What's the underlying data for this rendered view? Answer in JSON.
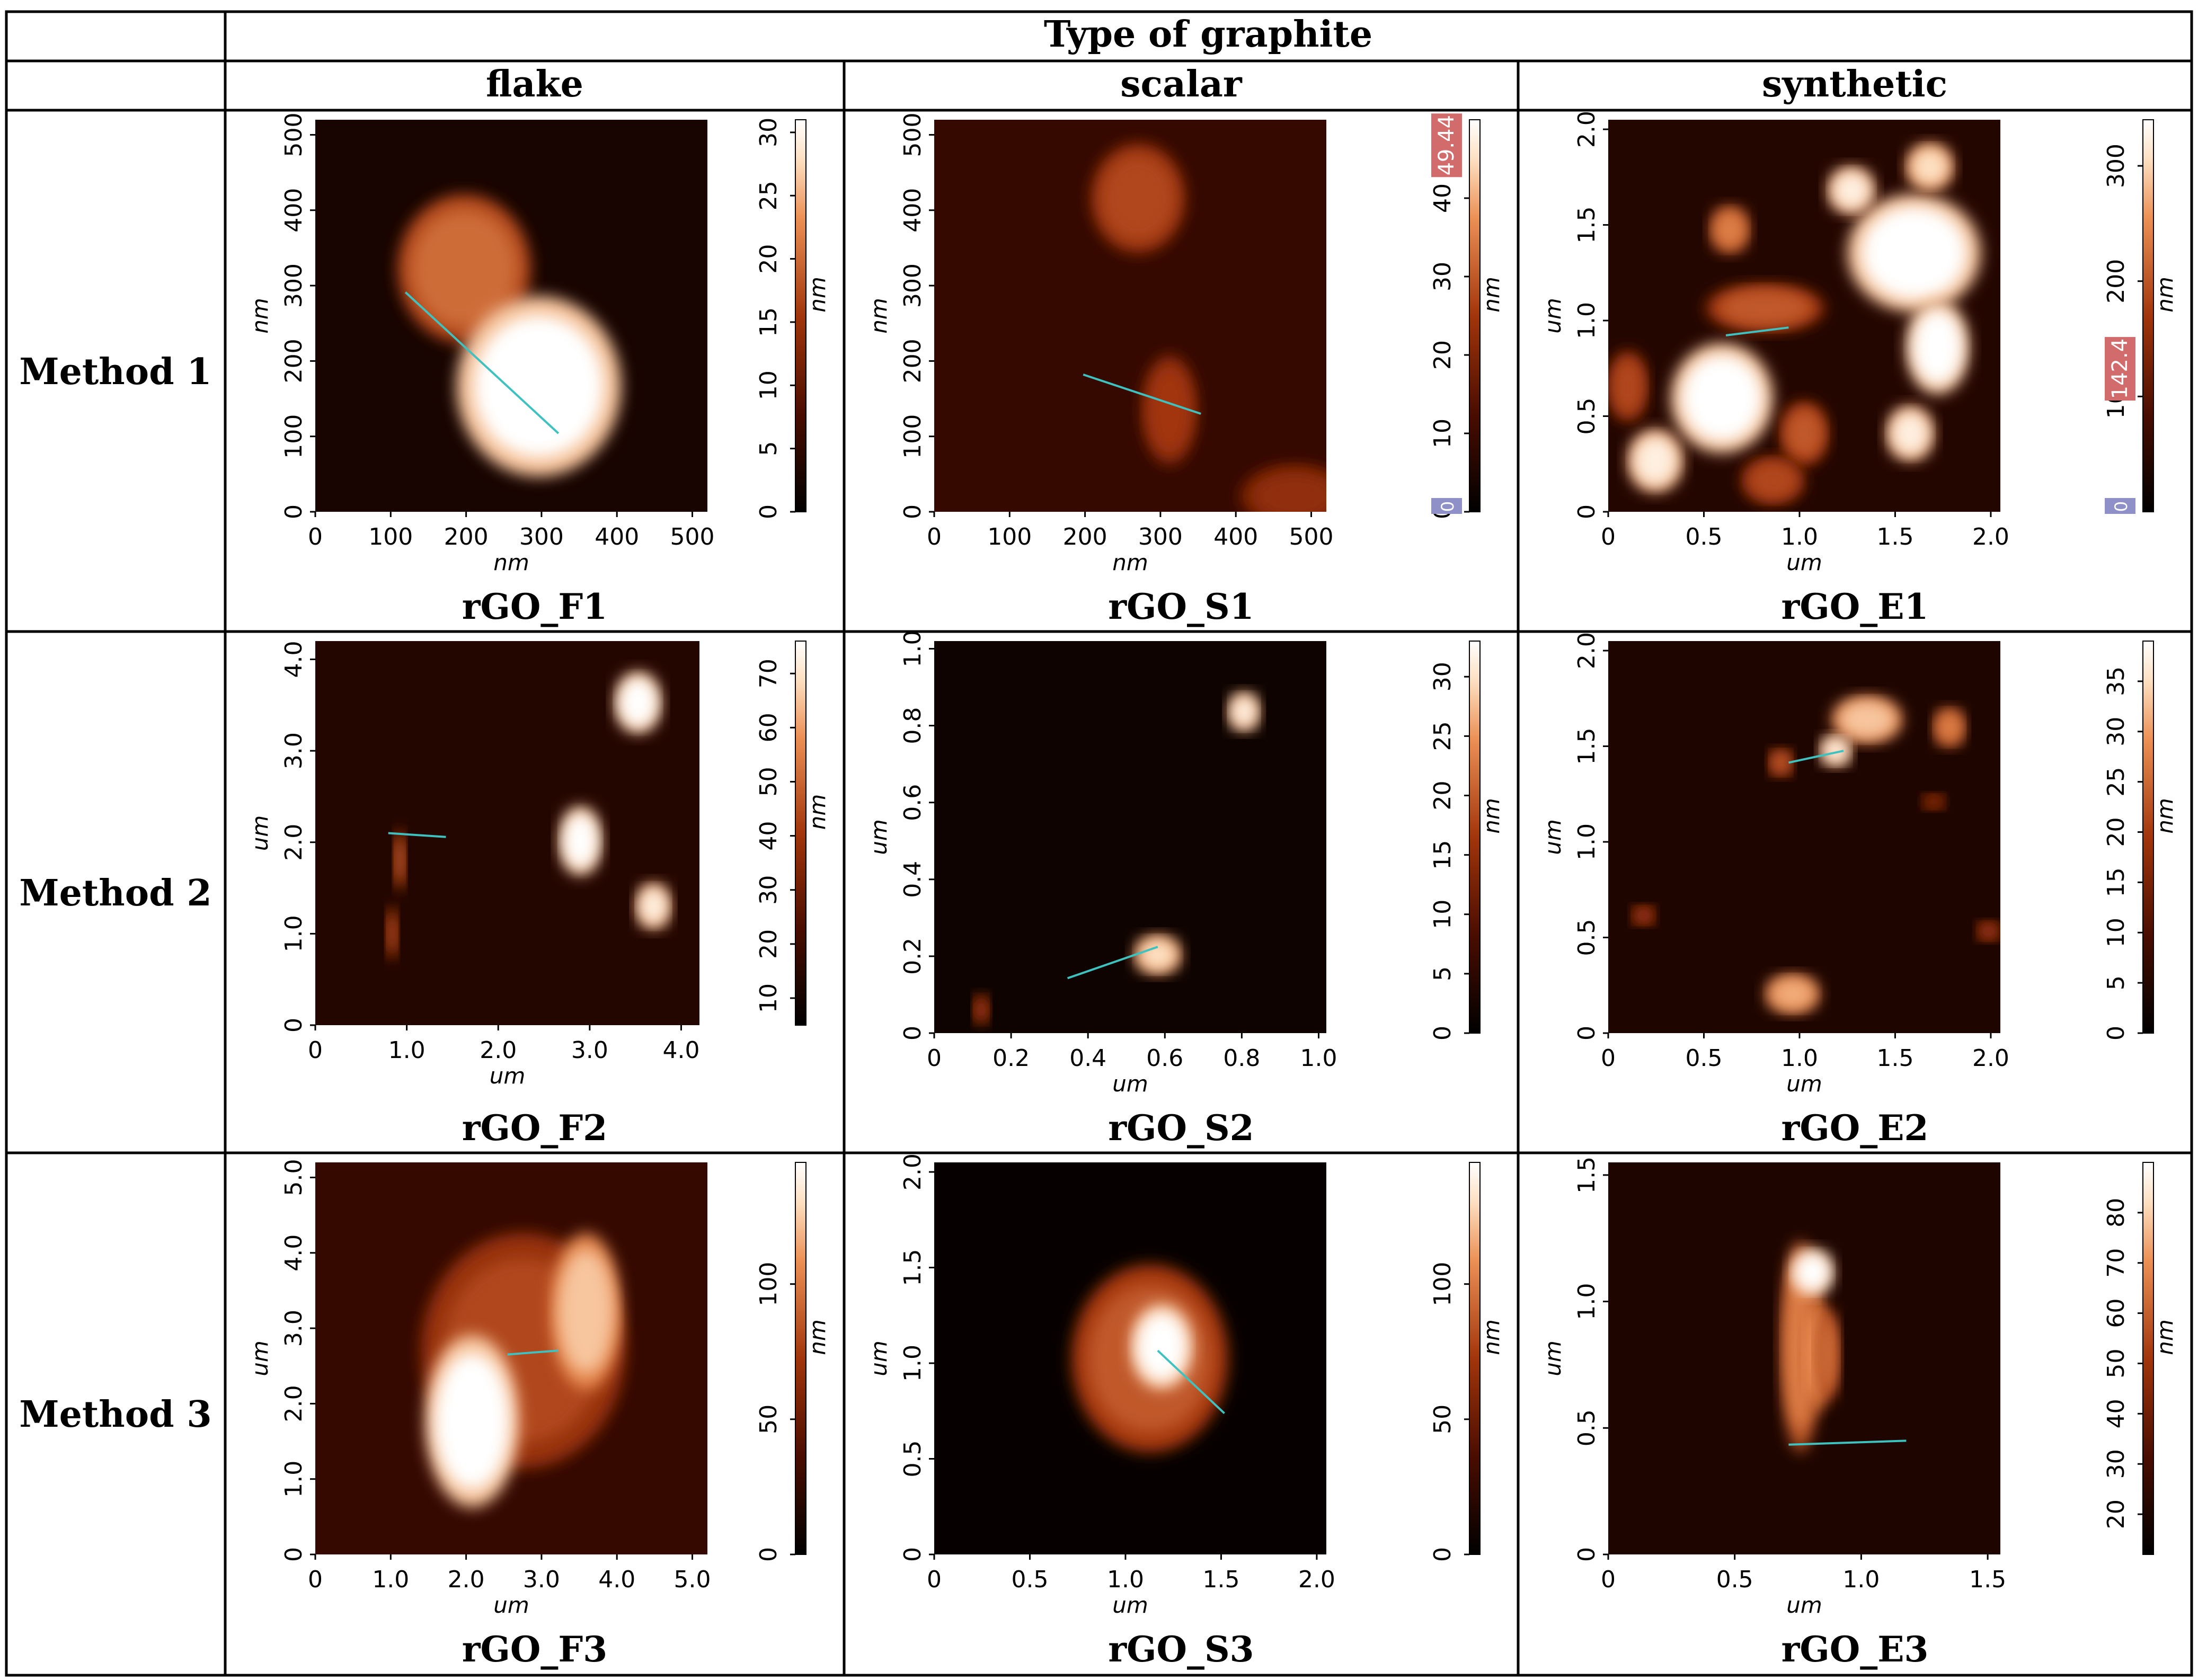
{
  "table": {
    "header": "Type of graphite",
    "columns": [
      "flake",
      "scalar",
      "synthetic"
    ],
    "rows": [
      "Method 1",
      "Method 2",
      "Method 3"
    ]
  },
  "afm_images": [
    {
      "id": "F1",
      "caption": "rGO_F1",
      "axis_unit": "nm",
      "xticks": [
        "0",
        "100",
        "200",
        "300",
        "400",
        "500"
      ],
      "yticks": [
        "0",
        "100",
        "200",
        "300",
        "400",
        "500"
      ],
      "axis_max": 520,
      "cb_unit": "nm",
      "cb_ticks": [
        "0",
        "5",
        "10",
        "15",
        "20",
        "25",
        "30"
      ],
      "cb_min": 0,
      "cb_max": 31,
      "cb_marker": null,
      "cb_zero_marker": null,
      "features": [
        {
          "x": 0.38,
          "y": 0.62,
          "rx": 0.17,
          "ry": 0.19,
          "level": 0.65
        },
        {
          "x": 0.57,
          "y": 0.32,
          "rx": 0.21,
          "ry": 0.23,
          "level": 1.0
        }
      ],
      "bg_level": 0.08,
      "profile": [
        [
          0.23,
          0.56
        ],
        [
          0.62,
          0.2
        ]
      ]
    },
    {
      "id": "S1",
      "caption": "rGO_S1",
      "axis_unit": "nm",
      "xticks": [
        "0",
        "100",
        "200",
        "300",
        "400",
        "500"
      ],
      "yticks": [
        "0",
        "100",
        "200",
        "300",
        "400",
        "500"
      ],
      "axis_max": 520,
      "cb_unit": "nm",
      "cb_ticks": [
        "0",
        "10",
        "20",
        "30",
        "40"
      ],
      "cb_min": 0,
      "cb_max": 50,
      "cb_marker": "49.44",
      "cb_zero_marker": "0",
      "features": [
        {
          "x": 0.52,
          "y": 0.8,
          "rx": 0.12,
          "ry": 0.14,
          "level": 0.55
        },
        {
          "x": 0.6,
          "y": 0.26,
          "rx": 0.07,
          "ry": 0.14,
          "level": 0.5
        },
        {
          "x": 0.92,
          "y": 0.04,
          "rx": 0.14,
          "ry": 0.08,
          "level": 0.45
        }
      ],
      "bg_level": 0.18,
      "profile": [
        [
          0.38,
          0.35
        ],
        [
          0.68,
          0.25
        ]
      ]
    },
    {
      "id": "E1",
      "caption": "rGO_E1",
      "axis_unit": "um",
      "xticks": [
        "0",
        "0.5",
        "1.0",
        "1.5",
        "2.0"
      ],
      "yticks": [
        "0",
        "0.5",
        "1.0",
        "1.5",
        "2.0"
      ],
      "axis_max": 2.05,
      "cb_unit": "nm",
      "cb_ticks": [
        "100",
        "200",
        "300"
      ],
      "cb_min": 0,
      "cb_max": 340,
      "cb_marker": "142.4",
      "cb_zero_marker": "0",
      "features": [
        {
          "x": 0.29,
          "y": 0.29,
          "rx": 0.13,
          "ry": 0.14,
          "level": 1.0
        },
        {
          "x": 0.12,
          "y": 0.13,
          "rx": 0.07,
          "ry": 0.08,
          "level": 0.95
        },
        {
          "x": 0.78,
          "y": 0.66,
          "rx": 0.17,
          "ry": 0.15,
          "level": 1.0
        },
        {
          "x": 0.84,
          "y": 0.42,
          "rx": 0.08,
          "ry": 0.12,
          "level": 1.0
        },
        {
          "x": 0.77,
          "y": 0.2,
          "rx": 0.06,
          "ry": 0.07,
          "level": 0.95
        },
        {
          "x": 0.62,
          "y": 0.82,
          "rx": 0.06,
          "ry": 0.06,
          "level": 0.95
        },
        {
          "x": 0.82,
          "y": 0.88,
          "rx": 0.06,
          "ry": 0.06,
          "level": 0.9
        },
        {
          "x": 0.31,
          "y": 0.72,
          "rx": 0.05,
          "ry": 0.06,
          "level": 0.7
        },
        {
          "x": 0.4,
          "y": 0.52,
          "rx": 0.15,
          "ry": 0.06,
          "level": 0.6
        },
        {
          "x": 0.5,
          "y": 0.2,
          "rx": 0.06,
          "ry": 0.08,
          "level": 0.6
        },
        {
          "x": 0.05,
          "y": 0.32,
          "rx": 0.05,
          "ry": 0.09,
          "level": 0.55
        },
        {
          "x": 0.42,
          "y": 0.08,
          "rx": 0.08,
          "ry": 0.06,
          "level": 0.55
        }
      ],
      "bg_level": 0.12,
      "profile": [
        [
          0.3,
          0.45
        ],
        [
          0.46,
          0.47
        ]
      ]
    },
    {
      "id": "F2",
      "caption": "rGO_F2",
      "axis_unit": "um",
      "xticks": [
        "0",
        "1.0",
        "2.0",
        "3.0",
        "4.0"
      ],
      "yticks": [
        "0",
        "1.0",
        "2.0",
        "3.0",
        "4.0"
      ],
      "axis_max": 4.2,
      "cb_unit": "nm",
      "cb_ticks": [
        "10",
        "20",
        "30",
        "40",
        "50",
        "60",
        "70"
      ],
      "cb_min": 5,
      "cb_max": 76,
      "cb_marker": null,
      "cb_zero_marker": null,
      "features": [
        {
          "x": 0.84,
          "y": 0.84,
          "rx": 0.06,
          "ry": 0.08,
          "level": 1.0
        },
        {
          "x": 0.69,
          "y": 0.48,
          "rx": 0.055,
          "ry": 0.09,
          "level": 1.0
        },
        {
          "x": 0.88,
          "y": 0.31,
          "rx": 0.045,
          "ry": 0.06,
          "level": 0.95
        },
        {
          "x": 0.22,
          "y": 0.43,
          "rx": 0.015,
          "ry": 0.08,
          "level": 0.6
        },
        {
          "x": 0.2,
          "y": 0.24,
          "rx": 0.015,
          "ry": 0.07,
          "level": 0.55
        }
      ],
      "bg_level": 0.12,
      "profile": [
        [
          0.19,
          0.5
        ],
        [
          0.34,
          0.49
        ]
      ]
    },
    {
      "id": "S2",
      "caption": "rGO_S2",
      "axis_unit": "um",
      "xticks": [
        "0",
        "0.2",
        "0.4",
        "0.6",
        "0.8",
        "1.0"
      ],
      "yticks": [
        "0",
        "0.2",
        "0.4",
        "0.6",
        "0.8",
        "1.0"
      ],
      "axis_max": 1.02,
      "cb_unit": "nm",
      "cb_ticks": [
        "0",
        "5",
        "10",
        "15",
        "20",
        "25",
        "30"
      ],
      "cb_min": 0,
      "cb_max": 33,
      "cb_marker": null,
      "cb_zero_marker": null,
      "features": [
        {
          "x": 0.79,
          "y": 0.82,
          "rx": 0.04,
          "ry": 0.05,
          "level": 0.95
        },
        {
          "x": 0.57,
          "y": 0.2,
          "rx": 0.06,
          "ry": 0.05,
          "level": 0.9
        },
        {
          "x": 0.12,
          "y": 0.06,
          "rx": 0.02,
          "ry": 0.04,
          "level": 0.5
        }
      ],
      "bg_level": 0.05,
      "profile": [
        [
          0.34,
          0.14
        ],
        [
          0.57,
          0.22
        ]
      ]
    },
    {
      "id": "E2",
      "caption": "rGO_E2",
      "axis_unit": "um",
      "xticks": [
        "0",
        "0.5",
        "1.0",
        "1.5",
        "2.0"
      ],
      "yticks": [
        "0",
        "0.5",
        "1.0",
        "1.5",
        "2.0"
      ],
      "axis_max": 2.05,
      "cb_unit": "nm",
      "cb_ticks": [
        "0",
        "5",
        "10",
        "15",
        "20",
        "25",
        "30",
        "35"
      ],
      "cb_min": 0,
      "cb_max": 39,
      "cb_marker": null,
      "cb_zero_marker": null,
      "features": [
        {
          "x": 0.66,
          "y": 0.8,
          "rx": 0.09,
          "ry": 0.06,
          "level": 0.85
        },
        {
          "x": 0.58,
          "y": 0.72,
          "rx": 0.04,
          "ry": 0.04,
          "level": 0.95
        },
        {
          "x": 0.44,
          "y": 0.69,
          "rx": 0.03,
          "ry": 0.035,
          "level": 0.6
        },
        {
          "x": 0.87,
          "y": 0.78,
          "rx": 0.04,
          "ry": 0.05,
          "level": 0.7
        },
        {
          "x": 0.47,
          "y": 0.1,
          "rx": 0.07,
          "ry": 0.05,
          "level": 0.8
        },
        {
          "x": 0.09,
          "y": 0.3,
          "rx": 0.03,
          "ry": 0.025,
          "level": 0.5
        },
        {
          "x": 0.97,
          "y": 0.26,
          "rx": 0.03,
          "ry": 0.025,
          "level": 0.5
        },
        {
          "x": 0.83,
          "y": 0.59,
          "rx": 0.03,
          "ry": 0.02,
          "level": 0.45
        }
      ],
      "bg_level": 0.1,
      "profile": [
        [
          0.46,
          0.69
        ],
        [
          0.6,
          0.72
        ]
      ]
    },
    {
      "id": "F3",
      "caption": "rGO_F3",
      "axis_unit": "um",
      "xticks": [
        "0",
        "1.0",
        "2.0",
        "3.0",
        "4.0",
        "5.0"
      ],
      "yticks": [
        "0",
        "1.0",
        "2.0",
        "3.0",
        "4.0",
        "5.0"
      ],
      "axis_max": 5.2,
      "cb_unit": "nm",
      "cb_ticks": [
        "0",
        "50",
        "100"
      ],
      "cb_min": 0,
      "cb_max": 145,
      "cb_marker": null,
      "cb_zero_marker": null,
      "features": [
        {
          "x": 0.53,
          "y": 0.52,
          "rx": 0.26,
          "ry": 0.3,
          "level": 0.55
        },
        {
          "x": 0.4,
          "y": 0.34,
          "rx": 0.12,
          "ry": 0.22,
          "level": 1.0
        },
        {
          "x": 0.69,
          "y": 0.62,
          "rx": 0.09,
          "ry": 0.2,
          "level": 0.85
        }
      ],
      "bg_level": 0.18,
      "profile": [
        [
          0.49,
          0.51
        ],
        [
          0.62,
          0.52
        ]
      ]
    },
    {
      "id": "S3",
      "caption": "rGO_S3",
      "axis_unit": "um",
      "xticks": [
        "0",
        "0.5",
        "1.0",
        "1.5",
        "2.0"
      ],
      "yticks": [
        "0",
        "0.5",
        "1.0",
        "1.5",
        "2.0"
      ],
      "axis_max": 2.05,
      "cb_unit": "nm",
      "cb_ticks": [
        "0",
        "50",
        "100"
      ],
      "cb_min": 0,
      "cb_max": 145,
      "cb_marker": null,
      "cb_zero_marker": null,
      "features": [
        {
          "x": 0.55,
          "y": 0.5,
          "rx": 0.2,
          "ry": 0.24,
          "level": 0.6
        },
        {
          "x": 0.58,
          "y": 0.53,
          "rx": 0.08,
          "ry": 0.11,
          "level": 1.0
        }
      ],
      "bg_level": 0.02,
      "profile": [
        [
          0.57,
          0.52
        ],
        [
          0.74,
          0.36
        ]
      ]
    },
    {
      "id": "E3",
      "caption": "rGO_E3",
      "axis_unit": "um",
      "xticks": [
        "0",
        "0.5",
        "1.0",
        "1.5"
      ],
      "yticks": [
        "0",
        "0.5",
        "1.0",
        "1.5"
      ],
      "axis_max": 1.55,
      "cb_unit": "nm",
      "cb_ticks": [
        "20",
        "30",
        "40",
        "50",
        "60",
        "70",
        "80"
      ],
      "cb_min": 12,
      "cb_max": 90,
      "cb_marker": null,
      "cb_zero_marker": null,
      "features": [
        {
          "x": 0.49,
          "y": 0.53,
          "rx": 0.05,
          "ry": 0.27,
          "level": 0.7
        },
        {
          "x": 0.53,
          "y": 0.51,
          "rx": 0.035,
          "ry": 0.15,
          "level": 0.75
        },
        {
          "x": 0.56,
          "y": 0.51,
          "rx": 0.03,
          "ry": 0.12,
          "level": 0.65
        },
        {
          "x": 0.52,
          "y": 0.72,
          "rx": 0.055,
          "ry": 0.06,
          "level": 1.0
        }
      ],
      "bg_level": 0.1,
      "profile": [
        [
          0.46,
          0.28
        ],
        [
          0.76,
          0.29
        ]
      ]
    }
  ],
  "colors": {
    "border": "#000000",
    "profile_line": "#3fc2bf",
    "marker_red": "#d26b6b",
    "marker_blue": "#8f90c8"
  }
}
